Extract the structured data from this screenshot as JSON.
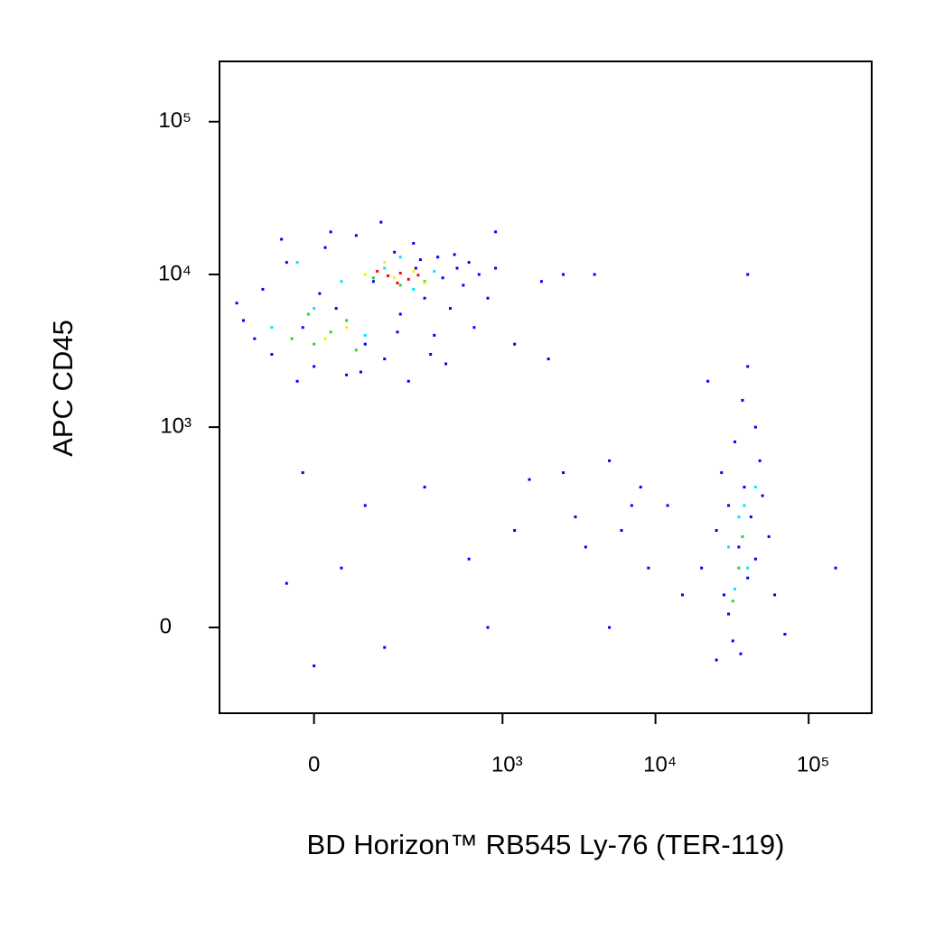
{
  "chart_data": {
    "type": "scatter",
    "x_label": "BD Horizon™ RB545 Ly-76 (TER-119)",
    "y_label": "APC CD45",
    "xscale": "biexponential",
    "yscale": "biexponential",
    "xlim": [
      -230,
      258000
    ],
    "ylim": [
      -165,
      248000
    ],
    "xticks": [
      0,
      {
        "value": 1000,
        "label": "10³"
      },
      {
        "value": 10000,
        "label": "10⁴"
      },
      {
        "value": 100000,
        "label": "10⁵"
      }
    ],
    "yticks": [
      0,
      {
        "value": 1000,
        "label": "10³"
      },
      {
        "value": 10000,
        "label": "10⁴"
      },
      {
        "value": 100000,
        "label": "10⁵"
      }
    ],
    "series": [
      {
        "color": "#0000ff",
        "x": [
          -150,
          -100,
          -80,
          -50,
          -20,
          0,
          20,
          40,
          60,
          80,
          100,
          120,
          150,
          180,
          200,
          230,
          260,
          300,
          330,
          370,
          400,
          450,
          500,
          550,
          600,
          700,
          800,
          -120,
          -60,
          30,
          140,
          250,
          350,
          420,
          -30,
          90,
          10,
          190,
          280,
          480,
          650,
          900,
          1200,
          2000,
          -170,
          2500,
          4000,
          1800,
          900,
          -20,
          100,
          300,
          50,
          -50,
          0,
          150,
          600,
          800,
          1500,
          2500,
          3000,
          5000,
          1200,
          7000,
          3500,
          20000,
          25000,
          28000,
          30000,
          32000,
          35000,
          38000,
          40000,
          42000,
          45000,
          50000,
          55000,
          60000,
          27000,
          33000,
          37000,
          40000,
          45000,
          25000,
          36000,
          30000,
          48000,
          22000,
          6000,
          9000,
          12000,
          15000,
          8000,
          5000,
          70000,
          150000,
          40000
        ],
        "y": [
          5000,
          8000,
          3000,
          12000,
          4500,
          2500,
          15000,
          6000,
          2200,
          18000,
          3500,
          9000,
          2800,
          14000,
          5500,
          2000,
          11000,
          7000,
          3000,
          13000,
          9500,
          6000,
          11000,
          8500,
          12000,
          10000,
          7000,
          3800,
          17000,
          19000,
          22000,
          16000,
          4000,
          2600,
          2000,
          2300,
          7500,
          4200,
          12500,
          13500,
          4500,
          11000,
          3500,
          2800,
          6500,
          10000,
          10000,
          9000,
          19000,
          500,
          300,
          400,
          100,
          70,
          -60,
          -30,
          120,
          0,
          450,
          500,
          250,
          600,
          200,
          300,
          150,
          100,
          200,
          50,
          300,
          -20,
          150,
          400,
          80,
          250,
          120,
          350,
          180,
          50,
          500,
          800,
          1500,
          2500,
          1000,
          -50,
          -40,
          20,
          600,
          2000,
          200,
          100,
          300,
          50,
          400,
          0,
          -10,
          100,
          10000
        ]
      },
      {
        "color": "#00e5ff",
        "x": [
          -80,
          0,
          50,
          150,
          250,
          350,
          100,
          -30,
          200,
          30000,
          35000,
          40000,
          33000,
          38000,
          45000
        ],
        "y": [
          4500,
          6000,
          9000,
          11000,
          8000,
          10500,
          4000,
          12000,
          13000,
          150,
          250,
          100,
          60,
          300,
          400
        ]
      },
      {
        "color": "#33cc33",
        "x": [
          0,
          30,
          -40,
          60,
          120,
          200,
          300,
          80,
          -10,
          35000,
          32000,
          37000
        ],
        "y": [
          3500,
          4200,
          3800,
          5000,
          9500,
          8500,
          9000,
          3200,
          5500,
          100,
          40,
          180
        ]
      },
      {
        "color": "#f2f200",
        "x": [
          100,
          180,
          250,
          20,
          300,
          150,
          60
        ],
        "y": [
          10000,
          9500,
          10500,
          3800,
          8800,
          12000,
          4500
        ]
      },
      {
        "color": "#ff0000",
        "x": [
          160,
          200,
          230,
          130,
          270,
          190
        ],
        "y": [
          9800,
          10200,
          9300,
          10500,
          9900,
          8800
        ]
      }
    ]
  }
}
